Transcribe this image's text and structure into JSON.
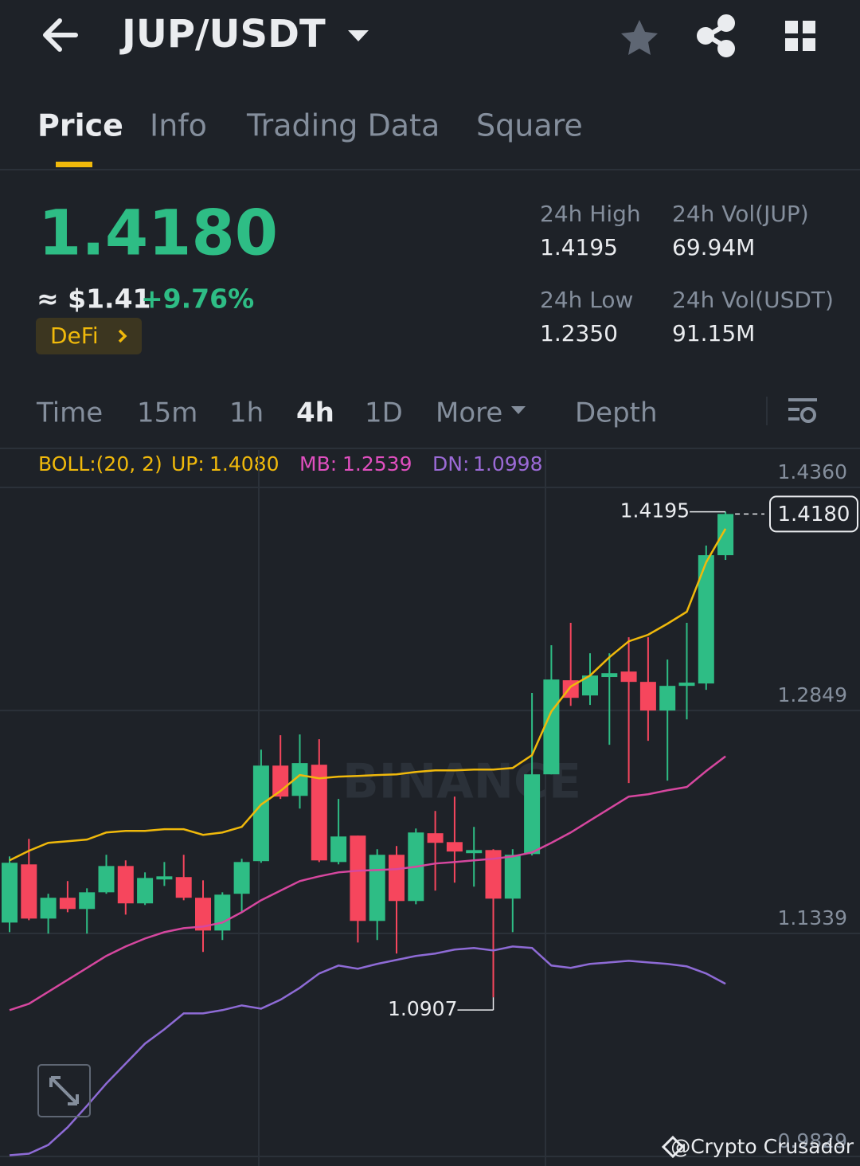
{
  "header": {
    "pair": "JUP/USDT"
  },
  "tabs": [
    "Price",
    "Info",
    "Trading Data",
    "Square"
  ],
  "summary": {
    "price": "1.4180",
    "fiat": "≈ $1.41",
    "change": "+9.76%",
    "tag": "DeFi"
  },
  "stats": [
    {
      "label": "24h High",
      "value": "1.4195"
    },
    {
      "label": "24h Vol(JUP)",
      "value": "69.94M"
    },
    {
      "label": "24h Low",
      "value": "1.2350"
    },
    {
      "label": "24h Vol(USDT)",
      "value": "91.15M"
    }
  ],
  "intervals": [
    "Time",
    "15m",
    "1h",
    "4h",
    "1D",
    "More",
    "Depth"
  ],
  "indicator": {
    "title": "BOLL:(20, 2)",
    "items": [
      {
        "label": "UP:",
        "value": "1.4080"
      },
      {
        "label": "MB:",
        "value": "1.2539"
      },
      {
        "label": "DN:",
        "value": "1.0998"
      }
    ]
  },
  "watermark": "BINANCE",
  "credit": "@Crypto Crusador",
  "chart_data": {
    "type": "candlestick",
    "up_color": "#2ebd85",
    "down_color": "#f6465d",
    "open": [
      1.1413,
      1.1807,
      1.144,
      1.1581,
      1.1505,
      1.1618,
      1.1796,
      1.1543,
      1.1705,
      1.1721,
      1.1581,
      1.1359,
      1.1608,
      1.1829,
      1.2476,
      1.2271,
      1.2482,
      1.1823,
      1.2002,
      1.1424,
      1.1872,
      1.1559,
      1.2018,
      1.1958,
      1.1883,
      1.1904,
      1.1575,
      1.1877,
      1.2417,
      1.3054,
      1.2951,
      1.3076,
      1.3113,
      1.3043,
      1.2849,
      1.3016,
      1.3032,
      1.3901
    ],
    "high": [
      1.1861,
      1.198,
      1.1608,
      1.1694,
      1.1645,
      1.1872,
      1.1834,
      1.1753,
      1.1823,
      1.1872,
      1.1699,
      1.1618,
      1.1845,
      1.2584,
      1.2682,
      1.2687,
      1.2655,
      1.225,
      1.2002,
      1.191,
      1.1931,
      1.205,
      1.2169,
      1.2266,
      1.2061,
      1.191,
      1.191,
      1.2968,
      1.3291,
      1.3443,
      1.3237,
      1.3237,
      1.3345,
      1.3345,
      1.3194,
      1.3443,
      1.3966,
      1.4195
    ],
    "low": [
      1.1348,
      1.1429,
      1.1338,
      1.1483,
      1.1338,
      1.1608,
      1.1467,
      1.1532,
      1.1661,
      1.1564,
      1.1214,
      1.1295,
      1.1483,
      1.1818,
      1.225,
      1.2185,
      1.1823,
      1.1807,
      1.1278,
      1.1295,
      1.1203,
      1.1537,
      1.1629,
      1.1683,
      1.1656,
      1.0907,
      1.1348,
      1.1867,
      1.2417,
      1.2881,
      1.2887,
      1.2617,
      1.2358,
      1.2644,
      1.2374,
      1.2789,
      1.2989,
      1.3869
    ],
    "close": [
      1.1818,
      1.144,
      1.1581,
      1.1505,
      1.1618,
      1.1796,
      1.1543,
      1.1715,
      1.1726,
      1.1581,
      1.1359,
      1.1602,
      1.1823,
      1.2476,
      1.2266,
      1.2493,
      1.1834,
      1.1996,
      1.1424,
      1.1872,
      1.1559,
      1.2023,
      1.1953,
      1.1894,
      1.1904,
      1.1575,
      1.1872,
      1.2417,
      1.3059,
      1.2935,
      1.3086,
      1.3102,
      1.3043,
      1.2849,
      1.3016,
      1.3038,
      1.3901,
      1.418
    ],
    "series": [
      {
        "name": "UP",
        "color": "#f0b90b",
        "values": [
          1.1834,
          1.1899,
          1.1953,
          1.1964,
          1.1975,
          1.2023,
          1.2034,
          1.2034,
          1.2045,
          1.2045,
          1.2007,
          1.2023,
          1.2061,
          1.2212,
          1.2304,
          1.2412,
          1.239,
          1.2401,
          1.2406,
          1.2412,
          1.2417,
          1.2433,
          1.2444,
          1.2444,
          1.2449,
          1.2449,
          1.246,
          1.2547,
          1.2843,
          1.3011,
          1.3086,
          1.321,
          1.3318,
          1.3362,
          1.3437,
          1.3518,
          1.3853,
          1.408
        ]
      },
      {
        "name": "MB",
        "color": "#d6479f",
        "values": [
          1.082,
          1.0863,
          1.0944,
          1.1025,
          1.1106,
          1.1187,
          1.1251,
          1.1305,
          1.1348,
          1.1375,
          1.1386,
          1.1413,
          1.1483,
          1.1564,
          1.1629,
          1.1694,
          1.1726,
          1.1753,
          1.1764,
          1.1769,
          1.1775,
          1.1791,
          1.1813,
          1.1823,
          1.1834,
          1.1845,
          1.1861,
          1.1888,
          1.1953,
          1.2023,
          1.2104,
          1.2185,
          1.2266,
          1.2282,
          1.2309,
          1.2331,
          1.2439,
          1.2539
        ]
      },
      {
        "name": "DN",
        "color": "#8e6bd6",
        "values": [
          0.9837,
          0.9848,
          0.9907,
          1.0026,
          1.0172,
          1.0323,
          1.0458,
          1.0593,
          1.069,
          1.0798,
          1.0798,
          1.082,
          1.0852,
          1.083,
          1.089,
          1.0971,
          1.1068,
          1.1122,
          1.11,
          1.1133,
          1.116,
          1.1187,
          1.1203,
          1.123,
          1.1241,
          1.1224,
          1.1251,
          1.1241,
          1.1122,
          1.1106,
          1.1133,
          1.1143,
          1.1154,
          1.1143,
          1.1133,
          1.1116,
          1.1068,
          1.0998
        ]
      }
    ],
    "ylim": [
      0.9829,
      1.436
    ],
    "yticks": [
      {
        "value": 1.436,
        "label": "1.4360"
      },
      {
        "value": 1.2849,
        "label": "1.2849"
      },
      {
        "value": 1.1339,
        "label": "1.1339"
      },
      {
        "value": 0.9829,
        "label": "0.9829"
      }
    ],
    "grid": true,
    "annotations": [
      {
        "value": 1.4195,
        "label": "1.4195"
      },
      {
        "value": 1.0907,
        "label": "1.0907"
      }
    ],
    "last_price": {
      "value": 1.418,
      "label": "1.4180"
    }
  }
}
